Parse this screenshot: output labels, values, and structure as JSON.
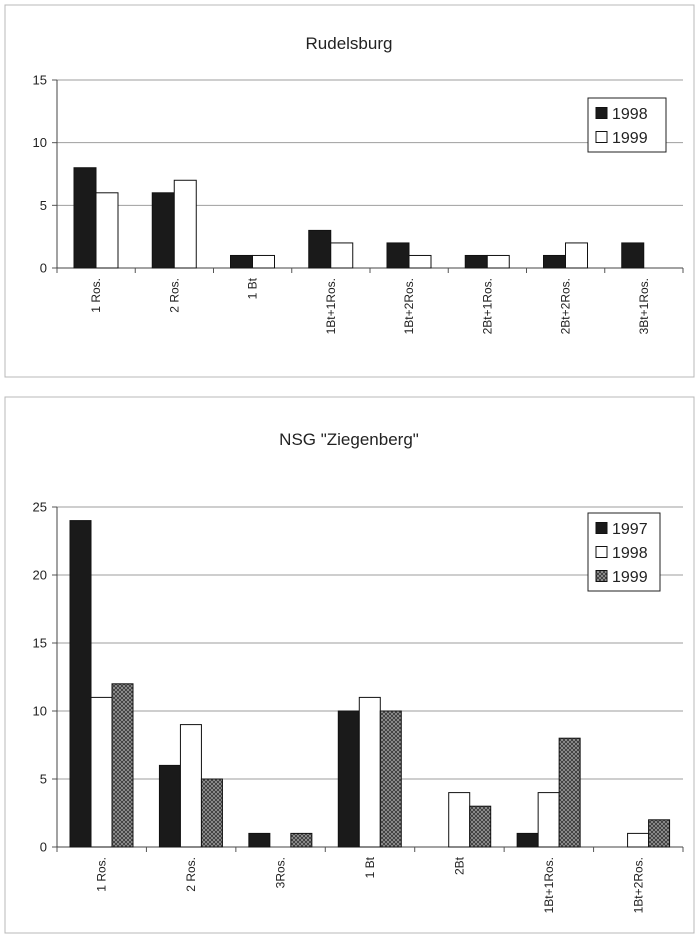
{
  "chart_data": [
    {
      "type": "bar",
      "title": "Rudelsburg",
      "xlabel": "",
      "ylabel": "",
      "categories": [
        "1 Ros.",
        "2 Ros.",
        "1 Bt",
        "1Bt+1Ros.",
        "1Bt+2Ros.",
        "2Bt+1Ros.",
        "2Bt+2Ros.",
        "3Bt+1Ros."
      ],
      "series": [
        {
          "name": "1998",
          "values": [
            8,
            6,
            1,
            3,
            2,
            1,
            1,
            2
          ],
          "color": "#1a1a1a",
          "fill": "solid"
        },
        {
          "name": "1999",
          "values": [
            6,
            7,
            1,
            2,
            1,
            1,
            2,
            0
          ],
          "color": "#ffffff",
          "fill": "solid"
        }
      ],
      "ylim": [
        0,
        15
      ],
      "yticks": [
        "0",
        "5",
        "10",
        "15"
      ],
      "grid": true,
      "legend": "top-right"
    },
    {
      "type": "bar",
      "title": "NSG \"Ziegenberg\"",
      "xlabel": "",
      "ylabel": "",
      "categories": [
        "1 Ros.",
        "2 Ros.",
        "3Ros.",
        "1 Bt",
        "2Bt",
        "1Bt+1Ros.",
        "1Bt+2Ros."
      ],
      "series": [
        {
          "name": "1997",
          "values": [
            24,
            6,
            1,
            10,
            0,
            1,
            0
          ],
          "color": "#1a1a1a",
          "fill": "solid"
        },
        {
          "name": "1998",
          "values": [
            11,
            9,
            0,
            11,
            4,
            4,
            1
          ],
          "color": "#ffffff",
          "fill": "solid"
        },
        {
          "name": "1999",
          "values": [
            12,
            5,
            1,
            10,
            3,
            8,
            2
          ],
          "color": "#8c8c8c",
          "fill": "crosshatch"
        }
      ],
      "ylim": [
        0,
        25
      ],
      "yticks": [
        "0",
        "5",
        "10",
        "15",
        "20",
        "25"
      ],
      "grid": true,
      "legend": "top-right"
    }
  ]
}
